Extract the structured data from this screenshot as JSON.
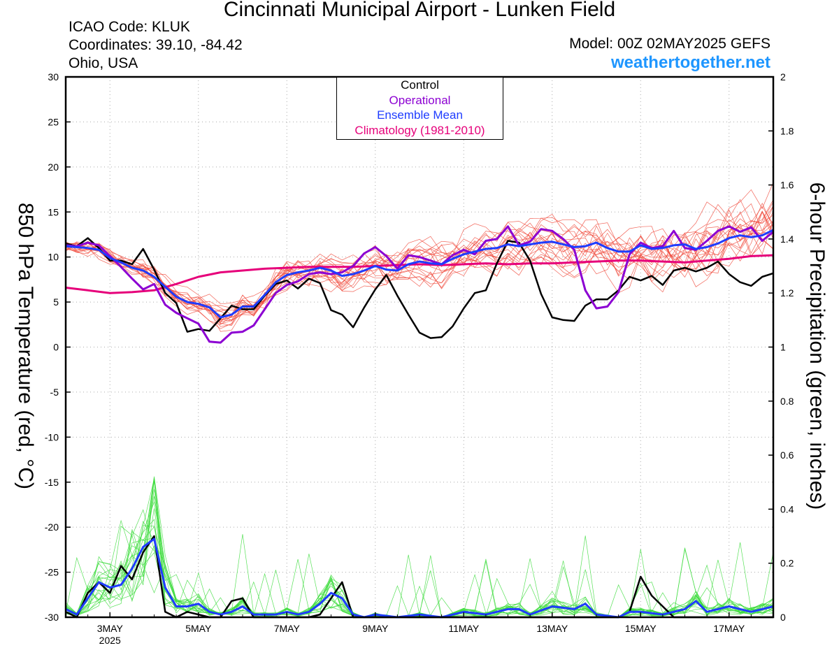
{
  "header": {
    "title": "Cincinnati Municipal Airport - Lunken Field",
    "icao": "ICAO Code: KLUK",
    "coords": "Coordinates: 39.10, -84.42",
    "region": "Ohio, USA",
    "model": "Model: 00Z 02MAY2025 GEFS",
    "website": "weathertogether.net"
  },
  "chart_data": {
    "type": "line",
    "ylabel_left": "850 hPa Temperature (red, °C)",
    "ylabel_right": "6-hour Precipitation (green, inches)",
    "ylim_left": [
      -30,
      30
    ],
    "ylim_right": [
      0,
      2
    ],
    "yticks_left": [
      "30",
      "25",
      "20",
      "15",
      "10",
      "5",
      "0",
      "-5",
      "-10",
      "-15",
      "-20",
      "-25",
      "-30"
    ],
    "yticks_right": [
      "2",
      "1.8",
      "1.6",
      "1.4",
      "1.2",
      "1",
      "0.8",
      "0.6",
      "0.4",
      "0.2",
      "0"
    ],
    "x_day_range": [
      2.0,
      18.0
    ],
    "x_ticks": [
      {
        "day": 3,
        "label": "3MAY",
        "sub": "2025"
      },
      {
        "day": 5,
        "label": "5MAY",
        "sub": ""
      },
      {
        "day": 7,
        "label": "7MAY",
        "sub": ""
      },
      {
        "day": 9,
        "label": "9MAY",
        "sub": ""
      },
      {
        "day": 11,
        "label": "11MAY",
        "sub": ""
      },
      {
        "day": 13,
        "label": "13MAY",
        "sub": ""
      },
      {
        "day": 15,
        "label": "15MAY",
        "sub": ""
      },
      {
        "day": 17,
        "label": "17MAY",
        "sub": ""
      }
    ],
    "grid": true,
    "legend_position": "top-center",
    "legend": [
      {
        "label": "Control",
        "color": "#000000"
      },
      {
        "label": "Operational",
        "color": "#8c00d2"
      },
      {
        "label": "Ensemble Mean",
        "color": "#1e3cff"
      },
      {
        "label": "Climatology (1981-2010)",
        "color": "#e6007a"
      }
    ],
    "colors": {
      "control": "#000000",
      "operational": "#8c00d2",
      "mean": "#1e3cff",
      "climatology": "#e6007a",
      "members_temp": "#f04a3c",
      "members_precip": "#3cdc3c"
    },
    "temperature": {
      "control": [
        [
          2.0,
          11.5
        ],
        [
          2.25,
          11.2
        ],
        [
          2.5,
          12.1
        ],
        [
          2.75,
          11.0
        ],
        [
          3.0,
          9.6
        ],
        [
          3.25,
          9.6
        ],
        [
          3.5,
          9.2
        ],
        [
          3.75,
          10.9
        ],
        [
          4.0,
          8.6
        ],
        [
          4.25,
          6.0
        ],
        [
          4.5,
          4.9
        ],
        [
          4.75,
          1.7
        ],
        [
          5.0,
          2.0
        ],
        [
          5.25,
          1.8
        ],
        [
          5.5,
          3.2
        ],
        [
          5.75,
          4.6
        ],
        [
          6.0,
          4.2
        ],
        [
          6.25,
          4.2
        ],
        [
          6.5,
          5.7
        ],
        [
          6.75,
          7.0
        ],
        [
          7.0,
          7.4
        ],
        [
          7.25,
          6.5
        ],
        [
          7.5,
          7.6
        ],
        [
          7.75,
          7.1
        ],
        [
          8.0,
          4.1
        ],
        [
          8.25,
          3.6
        ],
        [
          8.5,
          2.2
        ],
        [
          8.75,
          4.4
        ],
        [
          9.0,
          6.4
        ],
        [
          9.25,
          8.0
        ],
        [
          9.5,
          5.7
        ],
        [
          9.75,
          3.6
        ],
        [
          10.0,
          1.6
        ],
        [
          10.25,
          1.0
        ],
        [
          10.5,
          1.1
        ],
        [
          10.75,
          2.3
        ],
        [
          11.0,
          4.3
        ],
        [
          11.25,
          6.0
        ],
        [
          11.5,
          6.3
        ],
        [
          11.75,
          9.3
        ],
        [
          12.0,
          11.8
        ],
        [
          12.25,
          11.6
        ],
        [
          12.5,
          9.6
        ],
        [
          12.75,
          5.9
        ],
        [
          13.0,
          3.3
        ],
        [
          13.25,
          3.0
        ],
        [
          13.5,
          2.9
        ],
        [
          13.75,
          4.6
        ],
        [
          14.0,
          5.3
        ],
        [
          14.25,
          5.3
        ],
        [
          14.5,
          6.3
        ],
        [
          14.75,
          7.8
        ],
        [
          15.0,
          7.4
        ],
        [
          15.25,
          7.9
        ],
        [
          15.5,
          6.9
        ],
        [
          15.75,
          8.5
        ],
        [
          16.0,
          8.8
        ],
        [
          16.25,
          8.4
        ],
        [
          16.5,
          8.8
        ],
        [
          16.75,
          9.5
        ],
        [
          17.0,
          8.1
        ],
        [
          17.25,
          7.2
        ],
        [
          17.5,
          6.8
        ],
        [
          17.75,
          7.8
        ],
        [
          18.0,
          8.2
        ]
      ],
      "operational": [
        [
          2.0,
          11.3
        ],
        [
          2.25,
          11.2
        ],
        [
          2.5,
          11.6
        ],
        [
          2.75,
          11.3
        ],
        [
          3.0,
          10.1
        ],
        [
          3.25,
          8.9
        ],
        [
          3.5,
          7.6
        ],
        [
          3.75,
          6.4
        ],
        [
          4.0,
          7.0
        ],
        [
          4.25,
          4.7
        ],
        [
          4.5,
          3.8
        ],
        [
          4.75,
          3.2
        ],
        [
          5.0,
          2.6
        ],
        [
          5.25,
          0.6
        ],
        [
          5.5,
          0.5
        ],
        [
          5.75,
          1.6
        ],
        [
          6.0,
          1.7
        ],
        [
          6.25,
          2.4
        ],
        [
          6.5,
          4.2
        ],
        [
          6.75,
          6.0
        ],
        [
          7.0,
          6.9
        ],
        [
          7.25,
          7.3
        ],
        [
          7.5,
          8.1
        ],
        [
          7.75,
          8.3
        ],
        [
          8.0,
          8.1
        ],
        [
          8.25,
          8.3
        ],
        [
          8.5,
          9.0
        ],
        [
          8.75,
          10.4
        ],
        [
          9.0,
          11.1
        ],
        [
          9.25,
          10.1
        ],
        [
          9.5,
          8.7
        ],
        [
          9.75,
          10.2
        ],
        [
          10.0,
          10.0
        ],
        [
          10.25,
          9.6
        ],
        [
          10.5,
          9.2
        ],
        [
          10.75,
          10.2
        ],
        [
          11.0,
          10.8
        ],
        [
          11.25,
          10.3
        ],
        [
          11.5,
          11.8
        ],
        [
          11.75,
          12.0
        ],
        [
          12.0,
          13.4
        ],
        [
          12.25,
          11.3
        ],
        [
          12.5,
          11.7
        ],
        [
          12.75,
          13.1
        ],
        [
          13.0,
          12.9
        ],
        [
          13.25,
          12.0
        ],
        [
          13.5,
          10.8
        ],
        [
          13.75,
          6.3
        ],
        [
          14.0,
          4.3
        ],
        [
          14.25,
          4.5
        ],
        [
          14.5,
          6.1
        ],
        [
          14.75,
          10.3
        ],
        [
          15.0,
          11.6
        ],
        [
          15.25,
          11.0
        ],
        [
          15.5,
          11.2
        ],
        [
          15.75,
          12.9
        ],
        [
          16.0,
          11.0
        ],
        [
          16.25,
          10.8
        ],
        [
          16.5,
          11.8
        ],
        [
          16.75,
          12.9
        ],
        [
          17.0,
          13.4
        ],
        [
          17.25,
          12.8
        ],
        [
          17.5,
          13.3
        ],
        [
          17.75,
          11.8
        ],
        [
          18.0,
          12.8
        ]
      ],
      "mean": [
        [
          2.0,
          11.2
        ],
        [
          2.25,
          11.1
        ],
        [
          2.5,
          11.0
        ],
        [
          2.75,
          10.8
        ],
        [
          3.0,
          9.9
        ],
        [
          3.25,
          9.4
        ],
        [
          3.5,
          8.8
        ],
        [
          3.75,
          8.5
        ],
        [
          4.0,
          7.8
        ],
        [
          4.25,
          6.7
        ],
        [
          4.5,
          5.6
        ],
        [
          4.75,
          5.0
        ],
        [
          5.0,
          4.8
        ],
        [
          5.25,
          4.4
        ],
        [
          5.5,
          3.3
        ],
        [
          5.75,
          3.6
        ],
        [
          6.0,
          4.5
        ],
        [
          6.25,
          4.5
        ],
        [
          6.5,
          5.8
        ],
        [
          6.75,
          7.2
        ],
        [
          7.0,
          8.0
        ],
        [
          7.25,
          8.3
        ],
        [
          7.5,
          8.5
        ],
        [
          7.75,
          8.8
        ],
        [
          8.0,
          8.5
        ],
        [
          8.25,
          7.9
        ],
        [
          8.5,
          8.1
        ],
        [
          8.75,
          8.5
        ],
        [
          9.0,
          9.0
        ],
        [
          9.25,
          8.6
        ],
        [
          9.5,
          8.5
        ],
        [
          9.75,
          9.2
        ],
        [
          10.0,
          9.5
        ],
        [
          10.25,
          9.3
        ],
        [
          10.5,
          9.2
        ],
        [
          10.75,
          9.8
        ],
        [
          11.0,
          10.3
        ],
        [
          11.25,
          10.6
        ],
        [
          11.5,
          10.9
        ],
        [
          11.75,
          11.0
        ],
        [
          12.0,
          11.4
        ],
        [
          12.25,
          11.2
        ],
        [
          12.5,
          11.4
        ],
        [
          12.75,
          11.6
        ],
        [
          13.0,
          11.7
        ],
        [
          13.25,
          11.4
        ],
        [
          13.5,
          11.1
        ],
        [
          13.75,
          11.2
        ],
        [
          14.0,
          11.6
        ],
        [
          14.25,
          11.0
        ],
        [
          14.5,
          10.6
        ],
        [
          14.75,
          10.6
        ],
        [
          15.0,
          11.3
        ],
        [
          15.25,
          10.9
        ],
        [
          15.5,
          11.0
        ],
        [
          15.75,
          11.3
        ],
        [
          16.0,
          11.4
        ],
        [
          16.25,
          10.9
        ],
        [
          16.5,
          11.1
        ],
        [
          16.75,
          11.5
        ],
        [
          17.0,
          12.1
        ],
        [
          17.25,
          12.4
        ],
        [
          17.5,
          12.2
        ],
        [
          17.75,
          12.4
        ],
        [
          18.0,
          13.0
        ]
      ],
      "climatology": [
        [
          2.0,
          6.6
        ],
        [
          2.5,
          6.3
        ],
        [
          3.0,
          6.0
        ],
        [
          3.5,
          6.1
        ],
        [
          4.0,
          6.3
        ],
        [
          4.5,
          7.0
        ],
        [
          5.0,
          7.8
        ],
        [
          5.5,
          8.3
        ],
        [
          6.0,
          8.5
        ],
        [
          6.5,
          8.7
        ],
        [
          7.0,
          8.8
        ],
        [
          7.5,
          8.9
        ],
        [
          8.0,
          8.9
        ],
        [
          8.5,
          8.9
        ],
        [
          9.0,
          9.0
        ],
        [
          9.5,
          9.1
        ],
        [
          10.0,
          9.2
        ],
        [
          10.5,
          9.1
        ],
        [
          11.0,
          9.2
        ],
        [
          11.5,
          9.3
        ],
        [
          12.0,
          9.2
        ],
        [
          12.5,
          9.3
        ],
        [
          13.0,
          9.3
        ],
        [
          13.5,
          9.4
        ],
        [
          14.0,
          9.5
        ],
        [
          14.5,
          9.6
        ],
        [
          15.0,
          9.6
        ],
        [
          15.5,
          9.5
        ],
        [
          16.0,
          9.4
        ],
        [
          16.5,
          9.6
        ],
        [
          17.0,
          9.8
        ],
        [
          17.5,
          10.1
        ],
        [
          18.0,
          10.2
        ]
      ]
    },
    "precipitation": {
      "control": [
        [
          2.0,
          0.02
        ],
        [
          2.25,
          0.0
        ],
        [
          2.5,
          0.09
        ],
        [
          2.75,
          0.13
        ],
        [
          3.0,
          0.09
        ],
        [
          3.25,
          0.19
        ],
        [
          3.5,
          0.14
        ],
        [
          3.75,
          0.24
        ],
        [
          4.0,
          0.3
        ],
        [
          4.25,
          0.02
        ],
        [
          4.5,
          0.0
        ],
        [
          4.75,
          0.02
        ],
        [
          5.0,
          0.01
        ],
        [
          5.25,
          0.0
        ],
        [
          5.5,
          0.0
        ],
        [
          5.75,
          0.06
        ],
        [
          6.0,
          0.07
        ],
        [
          6.25,
          0.0
        ],
        [
          6.5,
          0.0
        ],
        [
          6.75,
          0.0
        ],
        [
          7.0,
          0.0
        ],
        [
          7.25,
          0.0
        ],
        [
          7.5,
          0.0
        ],
        [
          7.75,
          0.01
        ],
        [
          8.0,
          0.07
        ],
        [
          8.25,
          0.13
        ],
        [
          8.5,
          0.0
        ],
        [
          8.75,
          0.0
        ],
        [
          9.0,
          0.0
        ],
        [
          9.5,
          0.0
        ],
        [
          10.0,
          0.0
        ],
        [
          10.5,
          0.0
        ],
        [
          11.0,
          0.0
        ],
        [
          11.5,
          0.0
        ],
        [
          12.0,
          0.0
        ],
        [
          12.5,
          0.0
        ],
        [
          13.0,
          0.0
        ],
        [
          13.5,
          0.0
        ],
        [
          14.0,
          0.0
        ],
        [
          14.5,
          0.0
        ],
        [
          14.75,
          0.02
        ],
        [
          15.0,
          0.15
        ],
        [
          15.25,
          0.08
        ],
        [
          15.5,
          0.04
        ],
        [
          15.75,
          0.0
        ],
        [
          16.0,
          0.0
        ],
        [
          16.5,
          0.0
        ],
        [
          17.0,
          0.0
        ],
        [
          17.5,
          0.0
        ],
        [
          18.0,
          0.0
        ]
      ],
      "mean": [
        [
          2.0,
          0.03
        ],
        [
          2.25,
          0.01
        ],
        [
          2.5,
          0.07
        ],
        [
          2.75,
          0.13
        ],
        [
          3.0,
          0.11
        ],
        [
          3.25,
          0.12
        ],
        [
          3.5,
          0.18
        ],
        [
          3.75,
          0.26
        ],
        [
          4.0,
          0.29
        ],
        [
          4.25,
          0.11
        ],
        [
          4.5,
          0.04
        ],
        [
          4.75,
          0.04
        ],
        [
          5.0,
          0.05
        ],
        [
          5.25,
          0.02
        ],
        [
          5.5,
          0.01
        ],
        [
          5.75,
          0.02
        ],
        [
          6.0,
          0.04
        ],
        [
          6.25,
          0.01
        ],
        [
          6.5,
          0.01
        ],
        [
          6.75,
          0.01
        ],
        [
          7.0,
          0.02
        ],
        [
          7.25,
          0.01
        ],
        [
          7.5,
          0.02
        ],
        [
          7.75,
          0.05
        ],
        [
          8.0,
          0.09
        ],
        [
          8.25,
          0.07
        ],
        [
          8.5,
          0.01
        ],
        [
          8.75,
          0.0
        ],
        [
          9.0,
          0.01
        ],
        [
          9.5,
          0.0
        ],
        [
          10.0,
          0.01
        ],
        [
          10.5,
          0.0
        ],
        [
          11.0,
          0.02
        ],
        [
          11.5,
          0.01
        ],
        [
          12.0,
          0.03
        ],
        [
          12.25,
          0.03
        ],
        [
          12.5,
          0.01
        ],
        [
          13.0,
          0.04
        ],
        [
          13.5,
          0.03
        ],
        [
          13.75,
          0.05
        ],
        [
          14.0,
          0.01
        ],
        [
          14.5,
          0.0
        ],
        [
          14.75,
          0.02
        ],
        [
          15.0,
          0.02
        ],
        [
          15.5,
          0.01
        ],
        [
          16.0,
          0.03
        ],
        [
          16.25,
          0.06
        ],
        [
          16.5,
          0.02
        ],
        [
          17.0,
          0.04
        ],
        [
          17.5,
          0.02
        ],
        [
          18.0,
          0.04
        ]
      ]
    }
  }
}
